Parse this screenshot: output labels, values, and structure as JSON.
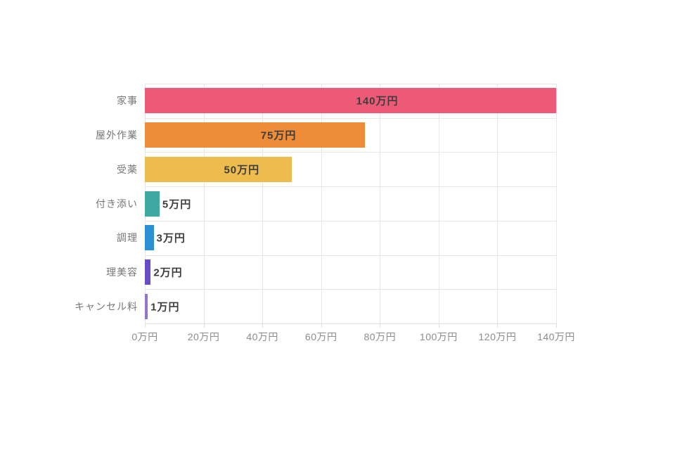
{
  "chart_data": {
    "type": "bar",
    "orientation": "horizontal",
    "title": "",
    "xlabel": "",
    "ylabel": "",
    "unit": "万円",
    "grid": true,
    "legend": "none",
    "categories": [
      "家事",
      "屋外作業",
      "受薬",
      "付き添い",
      "調理",
      "理美容",
      "キャンセル料"
    ],
    "values": [
      140,
      75,
      50,
      5,
      3,
      2,
      1
    ],
    "value_labels": [
      "140万円",
      "75万円",
      "50万円",
      "5万円",
      "3万円",
      "2万円",
      "1万円"
    ],
    "bar_colors": [
      "#EC5A77",
      "#EF8C38",
      "#EEBB4D",
      "#3FA8A0",
      "#2C90D4",
      "#6A4DC6",
      "#9173D8"
    ],
    "x_tick_labels": [
      "0万円",
      "20万円",
      "40万円",
      "60万円",
      "80万円",
      "100万円",
      "120万円",
      "140万円"
    ],
    "x_tick_values": [
      0,
      20,
      40,
      60,
      80,
      100,
      120,
      140
    ],
    "xlim": [
      0,
      140
    ]
  },
  "colors": {
    "background": "#FFFFFF",
    "gridline": "#E7E7E7",
    "axis_line": "#E0E0E0",
    "tick_mark": "#DCDCDC",
    "value_label": "#3D3D3D",
    "category_label": "#777777",
    "tick_label": "#8C8C8C"
  }
}
